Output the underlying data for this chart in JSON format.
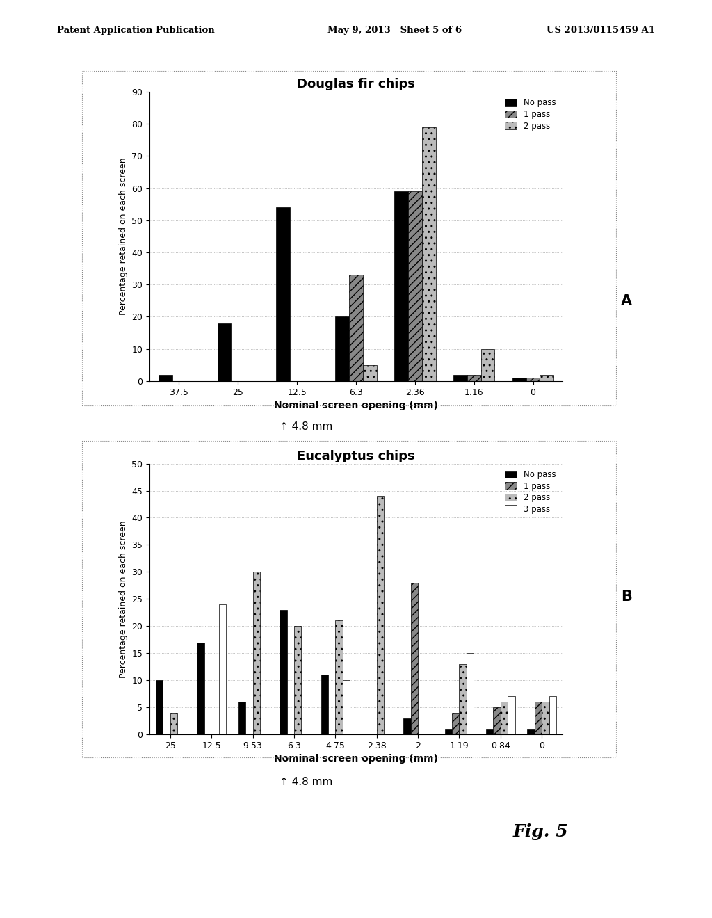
{
  "chart_A": {
    "title": "Douglas fir chips",
    "categories": [
      "37.5",
      "25",
      "12.5",
      "6.3",
      "2.36",
      "1.16",
      "0"
    ],
    "series": {
      "No pass": [
        2,
        18,
        54,
        20,
        59,
        2,
        1
      ],
      "1 pass": [
        0,
        0,
        0,
        33,
        59,
        2,
        1
      ],
      "2 pass": [
        0,
        0,
        0,
        5,
        79,
        10,
        2
      ]
    },
    "ylabel": "Percentage retained on each screen",
    "xlabel": "Nominal screen opening (mm)",
    "ylim": [
      0,
      90
    ],
    "yticks": [
      0,
      10,
      20,
      30,
      40,
      50,
      60,
      70,
      80,
      90
    ],
    "legend_labels": [
      "No pass",
      "1 pass",
      "2 pass"
    ],
    "bar_hatches": [
      null,
      "///",
      ".."
    ],
    "label": "A"
  },
  "chart_B": {
    "title": "Eucalyptus chips",
    "categories": [
      "25",
      "12.5",
      "9.53",
      "6.3",
      "4.75",
      "2.38",
      "2",
      "1.19",
      "0.84",
      "0"
    ],
    "series": {
      "No pass": [
        10,
        17,
        6,
        23,
        11,
        0,
        3,
        1,
        1,
        1
      ],
      "1 pass": [
        0,
        0,
        0,
        0,
        0,
        0,
        28,
        4,
        5,
        6
      ],
      "2 pass": [
        4,
        0,
        30,
        20,
        21,
        44,
        0,
        13,
        6,
        6
      ],
      "3 pass": [
        0,
        24,
        0,
        0,
        10,
        0,
        0,
        15,
        7,
        7
      ]
    },
    "ylabel": "Percentage retained on each screen",
    "xlabel": "Nominal screen opening (mm)",
    "ylim": [
      0,
      50
    ],
    "yticks": [
      0,
      5,
      10,
      15,
      20,
      25,
      30,
      35,
      40,
      45,
      50
    ],
    "legend_labels": [
      "No pass",
      "1 pass",
      "2 pass",
      "3 pass"
    ],
    "bar_hatches": [
      null,
      "///",
      "..",
      null
    ],
    "label": "B"
  },
  "annotation": "↑ 4.8 mm",
  "fig_label": "Fig. 5",
  "header_left": "Patent Application Publication",
  "header_center": "May 9, 2013   Sheet 5 of 6",
  "header_right": "US 2013/0115459 A1",
  "background_color": "#ffffff"
}
